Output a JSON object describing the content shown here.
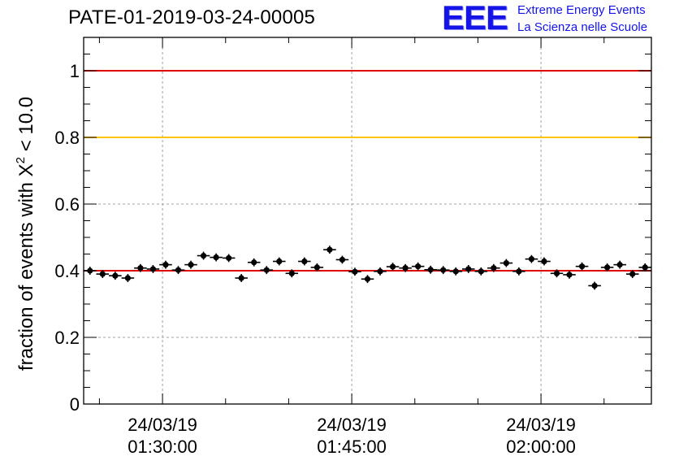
{
  "title": "PATE-01-2019-03-24-00005",
  "logo": {
    "mark": "EEE",
    "line1": "Extreme Energy Events",
    "line2": "La Scienza nelle Scuole"
  },
  "colors": {
    "points": "#000000",
    "grid": "#a0a0a0",
    "upper_line": "#e00000",
    "threshold_line": "#ffc400",
    "mean_line": "#e00000",
    "logo": "#1414e6"
  },
  "chart_data": {
    "type": "scatter",
    "title": "PATE-01-2019-03-24-00005",
    "xlabel": "",
    "ylabel": "fraction of events with χ² < 10.0",
    "ylabel_parts": {
      "pre": "fraction of events with X",
      "sup": "2",
      "post": " < 10.0"
    },
    "ylim": [
      0,
      1.1
    ],
    "xlim": [
      "01:23:45",
      "02:08:45"
    ],
    "grid": true,
    "yticks": [
      {
        "value": 0,
        "label": "0"
      },
      {
        "value": 0.2,
        "label": "0.2"
      },
      {
        "value": 0.4,
        "label": "0.4"
      },
      {
        "value": 0.6,
        "label": "0.6"
      },
      {
        "value": 0.8,
        "label": "0.8"
      },
      {
        "value": 1,
        "label": "1"
      }
    ],
    "xticks": [
      {
        "value": "01:30:00",
        "date": "24/03/19",
        "time": "01:30:00"
      },
      {
        "value": "01:45:00",
        "date": "24/03/19",
        "time": "01:45:00"
      },
      {
        "value": "02:00:00",
        "date": "24/03/19",
        "time": "02:00:00"
      }
    ],
    "reference_lines": [
      {
        "y": 1.0,
        "color": "#e00000"
      },
      {
        "y": 0.8,
        "color": "#ffc400"
      },
      {
        "y": 0.4,
        "color": "#e00000"
      }
    ],
    "x": [
      "01:24:15",
      "01:25:15",
      "01:26:15",
      "01:27:15",
      "01:28:15",
      "01:29:15",
      "01:30:15",
      "01:31:15",
      "01:32:15",
      "01:33:15",
      "01:34:15",
      "01:35:15",
      "01:36:15",
      "01:37:15",
      "01:38:15",
      "01:39:15",
      "01:40:15",
      "01:41:15",
      "01:42:15",
      "01:43:15",
      "01:44:15",
      "01:45:15",
      "01:46:15",
      "01:47:15",
      "01:48:15",
      "01:49:15",
      "01:50:15",
      "01:51:15",
      "01:52:15",
      "01:53:15",
      "01:54:15",
      "01:55:15",
      "01:56:15",
      "01:57:15",
      "01:58:15",
      "01:59:15",
      "02:00:15",
      "02:01:15",
      "02:02:15",
      "02:03:15",
      "02:04:15",
      "02:05:15",
      "02:06:15",
      "02:07:15",
      "02:08:15"
    ],
    "y": [
      0.4,
      0.39,
      0.385,
      0.378,
      0.408,
      0.405,
      0.418,
      0.402,
      0.418,
      0.445,
      0.44,
      0.438,
      0.378,
      0.425,
      0.402,
      0.428,
      0.392,
      0.428,
      0.41,
      0.463,
      0.433,
      0.397,
      0.375,
      0.398,
      0.412,
      0.408,
      0.413,
      0.403,
      0.402,
      0.398,
      0.405,
      0.398,
      0.408,
      0.423,
      0.398,
      0.435,
      0.428,
      0.392,
      0.388,
      0.413,
      0.355,
      0.41,
      0.418,
      0.39,
      0.41
    ],
    "y_err": 0.012
  }
}
